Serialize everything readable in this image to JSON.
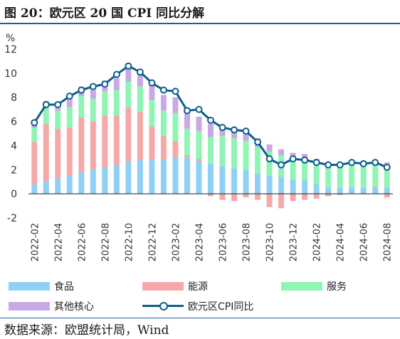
{
  "title": "图 20：欧元区 20 国 CPI 同比分解",
  "source": "数据来源：欧盟统计局，Wind",
  "colors": {
    "food": "#8fd0f7",
    "energy": "#f6a8a8",
    "services": "#8ef5b5",
    "core_goods": "#c9a8e6",
    "cpi": "#0e5f8c"
  },
  "chart_data": {
    "type": "bar",
    "stacked": true,
    "ylabel": "%",
    "ylim": [
      -2,
      12
    ],
    "yticks": [
      -2,
      0,
      2,
      4,
      6,
      8,
      10,
      12
    ],
    "grid": false,
    "legend_position": "bottom",
    "categories": [
      "2022-02",
      "2022-03",
      "2022-04",
      "2022-05",
      "2022-06",
      "2022-07",
      "2022-08",
      "2022-09",
      "2022-10",
      "2022-11",
      "2022-12",
      "2023-01",
      "2023-02",
      "2023-03",
      "2023-04",
      "2023-05",
      "2023-06",
      "2023-07",
      "2023-08",
      "2023-09",
      "2023-10",
      "2023-11",
      "2023-12",
      "2024-01",
      "2024-02",
      "2024-03",
      "2024-04",
      "2024-05",
      "2024-06",
      "2024-07",
      "2024-08"
    ],
    "x_tick_labels": [
      "2022-02",
      "2022-04",
      "2022-06",
      "2022-08",
      "2022-10",
      "2022-12",
      "2023-02",
      "2023-04",
      "2023-06",
      "2023-08",
      "2023-10",
      "2023-12",
      "2024-02",
      "2024-04",
      "2024-06",
      "2024-08"
    ],
    "series": [
      {
        "name": "食品",
        "kind": "bar",
        "color_key": "food",
        "values": [
          0.8,
          1.0,
          1.3,
          1.5,
          1.8,
          2.0,
          2.2,
          2.4,
          2.7,
          2.8,
          2.8,
          2.8,
          3.0,
          3.0,
          2.7,
          2.5,
          2.3,
          2.1,
          2.0,
          1.7,
          1.5,
          1.4,
          1.2,
          1.1,
          0.8,
          0.5,
          0.5,
          0.5,
          0.5,
          0.5,
          0.5
        ]
      },
      {
        "name": "能源",
        "kind": "bar",
        "color_key": "energy",
        "values": [
          3.5,
          4.8,
          4.1,
          4.0,
          4.5,
          4.0,
          4.3,
          4.1,
          4.5,
          4.0,
          2.8,
          2.0,
          1.4,
          0.2,
          0.2,
          -0.2,
          -0.5,
          -0.6,
          -0.3,
          -0.5,
          -1.1,
          -1.2,
          -0.6,
          -0.5,
          -0.4,
          -0.2,
          -0.1,
          0.0,
          0.0,
          0.1,
          -0.3
        ]
      },
      {
        "name": "服务",
        "kind": "bar",
        "color_key": "services",
        "values": [
          1.2,
          1.4,
          1.5,
          1.7,
          1.8,
          1.9,
          2.0,
          2.1,
          2.1,
          2.1,
          2.2,
          2.1,
          2.3,
          2.2,
          2.3,
          2.2,
          2.5,
          2.5,
          2.4,
          2.2,
          2.0,
          1.8,
          1.8,
          1.8,
          1.8,
          1.8,
          1.8,
          1.9,
          1.9,
          1.9,
          1.9
        ]
      },
      {
        "name": "其他核心",
        "kind": "bar",
        "color_key": "core_goods",
        "values": [
          0.3,
          0.5,
          0.6,
          0.7,
          0.8,
          0.8,
          0.9,
          1.0,
          1.2,
          1.3,
          1.3,
          1.3,
          1.3,
          1.3,
          1.2,
          1.1,
          0.9,
          0.8,
          0.8,
          0.7,
          0.6,
          0.5,
          0.4,
          0.4,
          0.3,
          0.3,
          0.3,
          0.2,
          0.2,
          0.2,
          0.2
        ]
      },
      {
        "name": "欧元区CPI同比",
        "kind": "line",
        "color_key": "cpi",
        "values": [
          5.9,
          7.4,
          7.4,
          8.1,
          8.6,
          8.9,
          9.1,
          9.9,
          10.6,
          10.1,
          9.2,
          8.6,
          8.5,
          6.9,
          7.0,
          6.1,
          5.5,
          5.3,
          5.2,
          4.3,
          2.9,
          2.4,
          2.9,
          2.8,
          2.6,
          2.4,
          2.4,
          2.6,
          2.5,
          2.6,
          2.2
        ]
      }
    ]
  }
}
